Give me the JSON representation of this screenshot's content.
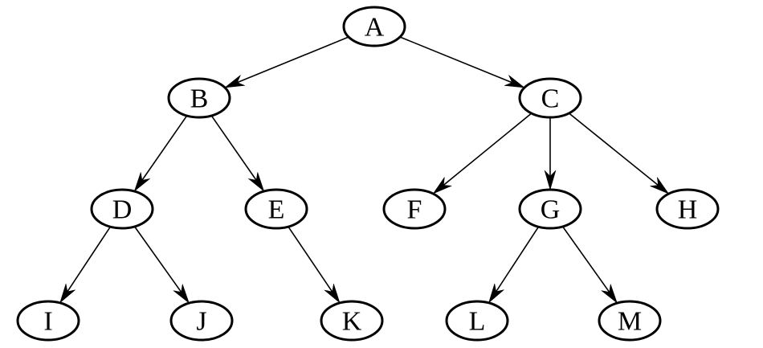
{
  "nodes": [
    {
      "id": "A",
      "label": "A"
    },
    {
      "id": "B",
      "label": "B"
    },
    {
      "id": "C",
      "label": "C"
    },
    {
      "id": "D",
      "label": "D"
    },
    {
      "id": "E",
      "label": "E"
    },
    {
      "id": "F",
      "label": "F"
    },
    {
      "id": "G",
      "label": "G"
    },
    {
      "id": "H",
      "label": "H"
    },
    {
      "id": "I",
      "label": "I"
    },
    {
      "id": "J",
      "label": "J"
    },
    {
      "id": "K",
      "label": "K"
    },
    {
      "id": "L",
      "label": "L"
    },
    {
      "id": "M",
      "label": "M"
    }
  ],
  "edges": [
    {
      "from": "A",
      "to": "B"
    },
    {
      "from": "A",
      "to": "C"
    },
    {
      "from": "B",
      "to": "D"
    },
    {
      "from": "B",
      "to": "E"
    },
    {
      "from": "C",
      "to": "F"
    },
    {
      "from": "C",
      "to": "G"
    },
    {
      "from": "C",
      "to": "H"
    },
    {
      "from": "D",
      "to": "I"
    },
    {
      "from": "D",
      "to": "J"
    },
    {
      "from": "E",
      "to": "K"
    },
    {
      "from": "G",
      "to": "L"
    },
    {
      "from": "G",
      "to": "M"
    }
  ],
  "colors": {
    "stroke": "#000000",
    "fill": "#ffffff",
    "text": "#000000"
  }
}
